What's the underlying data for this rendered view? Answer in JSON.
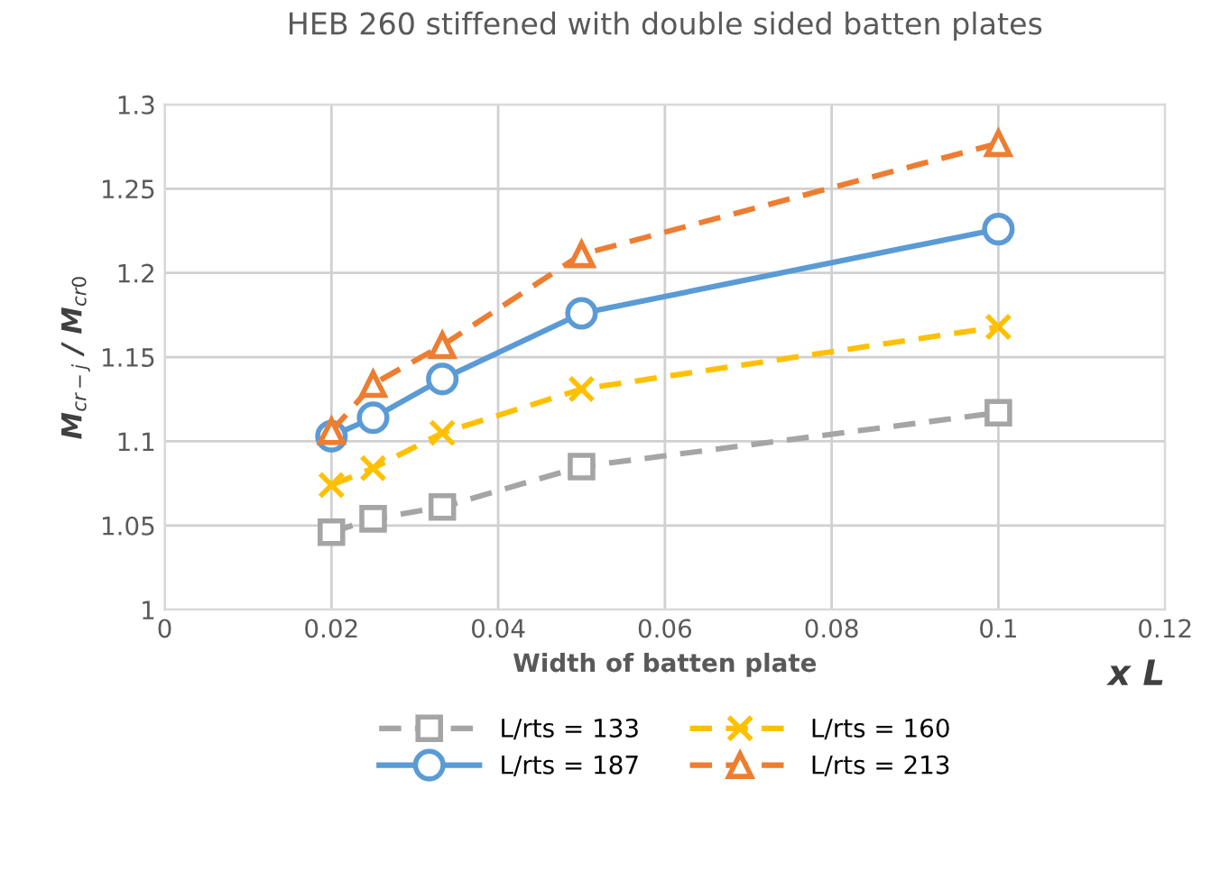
{
  "chart_data": {
    "type": "line",
    "title": "HEB 260 stiffened with double sided batten plates",
    "xlabel": "Width of batten plate",
    "ylabel": "M$_{cr−j}$ / M$_{cr0}$",
    "x": [
      0.02,
      0.025,
      0.0333,
      0.05,
      0.1
    ],
    "series": [
      {
        "name": "L/rts = 133",
        "color": "#a5a5a5",
        "values": [
          1.046,
          1.054,
          1.061,
          1.085,
          1.117
        ],
        "marker": "square",
        "line_style": "dashed"
      },
      {
        "name": "L/rts = 160",
        "color": "#ffc000",
        "values": [
          1.074,
          1.084,
          1.105,
          1.131,
          1.168
        ],
        "marker": "cross",
        "line_style": "dashed"
      },
      {
        "name": "L/rts = 187",
        "color": "#5b9bd5",
        "values": [
          1.103,
          1.114,
          1.137,
          1.176,
          1.226
        ],
        "marker": "circle",
        "line_style": "solid"
      },
      {
        "name": "L/rts = 213",
        "color": "#ed7d31",
        "values": [
          1.106,
          1.134,
          1.157,
          1.211,
          1.277
        ],
        "marker": "triangle",
        "line_style": "dashed"
      }
    ],
    "xlim": [
      0,
      0.12
    ],
    "xticks": [
      0,
      0.02,
      0.04,
      0.06,
      0.08,
      0.1,
      0.12
    ],
    "ylim": [
      1,
      1.3
    ],
    "yticks": [
      1,
      1.05,
      1.1,
      1.15,
      1.2,
      1.25,
      1.3
    ],
    "grid": true,
    "legend": "bottom",
    "annotations": [
      "x L"
    ]
  }
}
